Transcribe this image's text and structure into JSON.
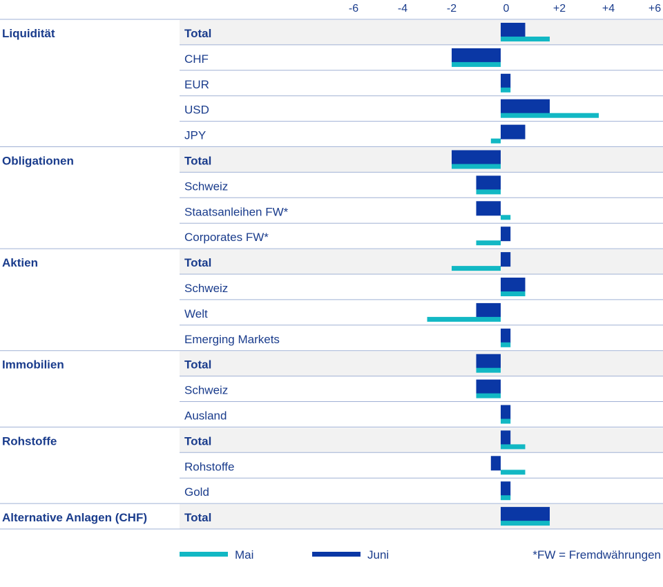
{
  "chart_data": {
    "type": "bar",
    "orientation": "horizontal",
    "ticks": [
      "-6",
      "-4",
      "-2",
      "0",
      "+2",
      "+4",
      "+6"
    ],
    "xlim": [
      -6,
      6
    ],
    "grid": false,
    "legend_position": "bottom",
    "series": [
      {
        "name": "Mai",
        "color": "#12b8c4"
      },
      {
        "name": "Juni",
        "color": "#0a37a5"
      }
    ],
    "groups": [
      {
        "name": "Liquidität",
        "rows": [
          {
            "label": "Total",
            "bold": true,
            "mai": 2,
            "juni": 1
          },
          {
            "label": "CHF",
            "bold": false,
            "mai": -2,
            "juni": -2
          },
          {
            "label": "EUR",
            "bold": false,
            "mai": 0.4,
            "juni": 0.4
          },
          {
            "label": "USD",
            "bold": false,
            "mai": 4,
            "juni": 2
          },
          {
            "label": "JPY",
            "bold": false,
            "mai": -0.4,
            "juni": 1
          }
        ]
      },
      {
        "name": "Obligationen",
        "rows": [
          {
            "label": "Total",
            "bold": true,
            "mai": -2,
            "juni": -2
          },
          {
            "label": "Schweiz",
            "bold": false,
            "mai": -1,
            "juni": -1
          },
          {
            "label": "Staatsanleihen FW*",
            "bold": false,
            "mai": 0.4,
            "juni": -1
          },
          {
            "label": "Corporates FW*",
            "bold": false,
            "mai": -1,
            "juni": 0.4
          }
        ]
      },
      {
        "name": "Aktien",
        "rows": [
          {
            "label": "Total",
            "bold": true,
            "mai": -2,
            "juni": 0.4
          },
          {
            "label": "Schweiz",
            "bold": false,
            "mai": 1,
            "juni": 1
          },
          {
            "label": "Welt",
            "bold": false,
            "mai": -3,
            "juni": -1
          },
          {
            "label": "Emerging Markets",
            "bold": false,
            "mai": 0.4,
            "juni": 0.4
          }
        ]
      },
      {
        "name": "Immobilien",
        "rows": [
          {
            "label": "Total",
            "bold": true,
            "mai": -1,
            "juni": -1
          },
          {
            "label": "Schweiz",
            "bold": false,
            "mai": -1,
            "juni": -1
          },
          {
            "label": "Ausland",
            "bold": false,
            "mai": 0.4,
            "juni": 0.4
          }
        ]
      },
      {
        "name": "Rohstoffe",
        "rows": [
          {
            "label": "Total",
            "bold": true,
            "mai": 1,
            "juni": 0.4
          },
          {
            "label": "Rohstoffe",
            "bold": false,
            "mai": 1,
            "juni": -0.4
          },
          {
            "label": "Gold",
            "bold": false,
            "mai": 0.4,
            "juni": 0.4
          }
        ]
      },
      {
        "name": "Alternative Anlagen (CHF)",
        "rows": [
          {
            "label": "Total",
            "bold": true,
            "mai": 2,
            "juni": 2
          }
        ]
      }
    ],
    "footnote": "*FW = Fremdwährungen"
  }
}
